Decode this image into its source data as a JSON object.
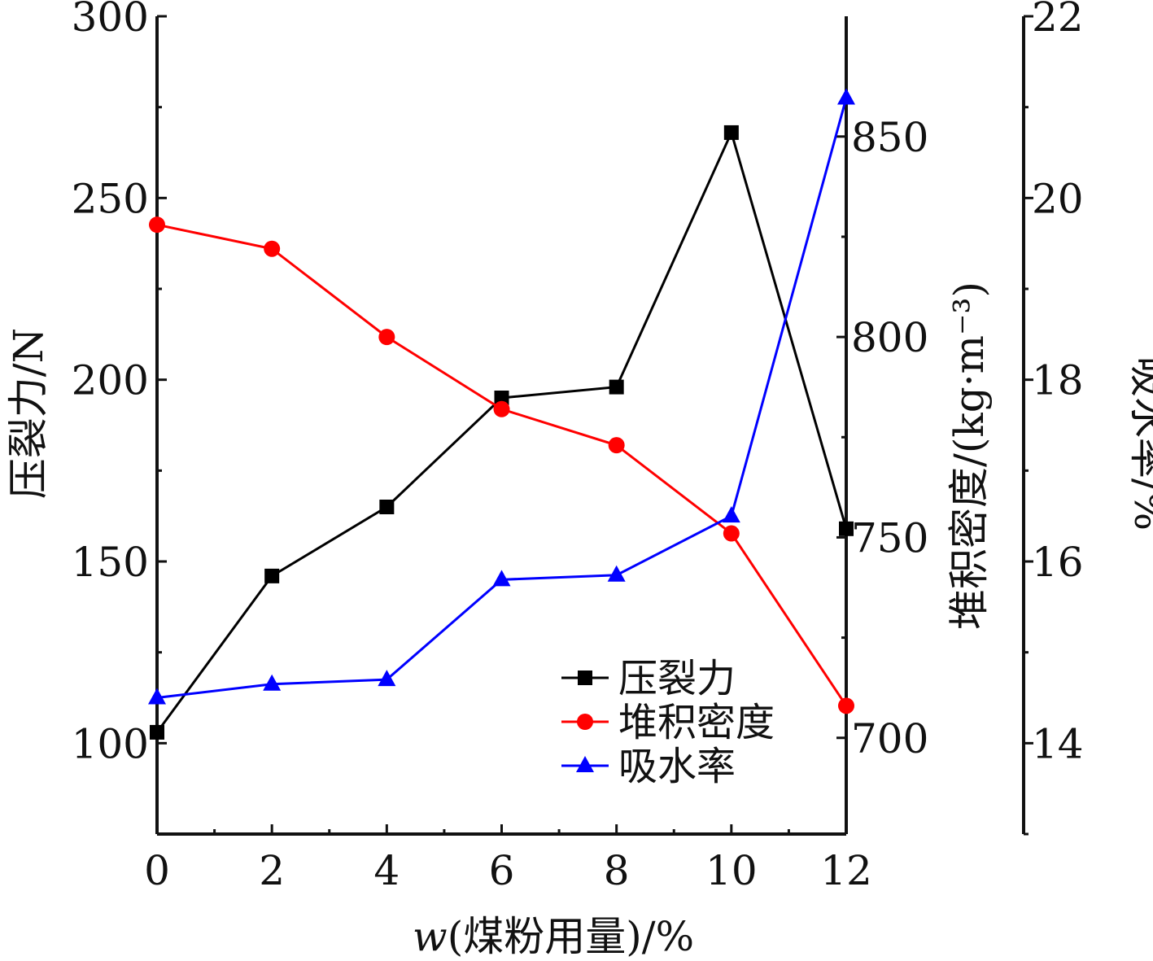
{
  "chart_data": {
    "type": "line",
    "x": [
      0,
      2,
      4,
      6,
      8,
      10,
      12
    ],
    "xlabel_var": "w",
    "xlabel_rest": "(煤粉用量)/%",
    "xticks": [
      "0",
      "2",
      "4",
      "6",
      "8",
      "10",
      "12"
    ],
    "xlim": [
      0,
      12
    ],
    "grid": false,
    "legend_position": "bottom-right",
    "axes": [
      {
        "id": "left",
        "label": "压裂力/N",
        "ylim": [
          75,
          300
        ],
        "ticks": [
          100,
          150,
          200,
          250,
          300
        ]
      },
      {
        "id": "right1",
        "label": "堆积密度/(kg·m⁻³)",
        "ylim": [
          676,
          880
        ],
        "ticks": [
          700,
          750,
          800,
          850
        ]
      },
      {
        "id": "right2",
        "label": "吸水率/%",
        "ylim": [
          13,
          22
        ],
        "ticks": [
          14,
          16,
          18,
          20,
          22
        ]
      }
    ],
    "series": [
      {
        "name": "压裂力",
        "axis": "left",
        "color": "#000000",
        "marker": "square",
        "values": [
          103,
          146,
          165,
          195,
          198,
          268,
          159
        ]
      },
      {
        "name": "堆积密度",
        "axis": "right1",
        "color": "#ff0000",
        "marker": "circle",
        "values": [
          828,
          822,
          800,
          782,
          773,
          751,
          708
        ]
      },
      {
        "name": "吸水率",
        "axis": "right2",
        "color": "#0000ff",
        "marker": "triangle",
        "values": [
          14.5,
          14.65,
          14.7,
          15.8,
          15.85,
          16.5,
          21.1
        ]
      }
    ]
  }
}
